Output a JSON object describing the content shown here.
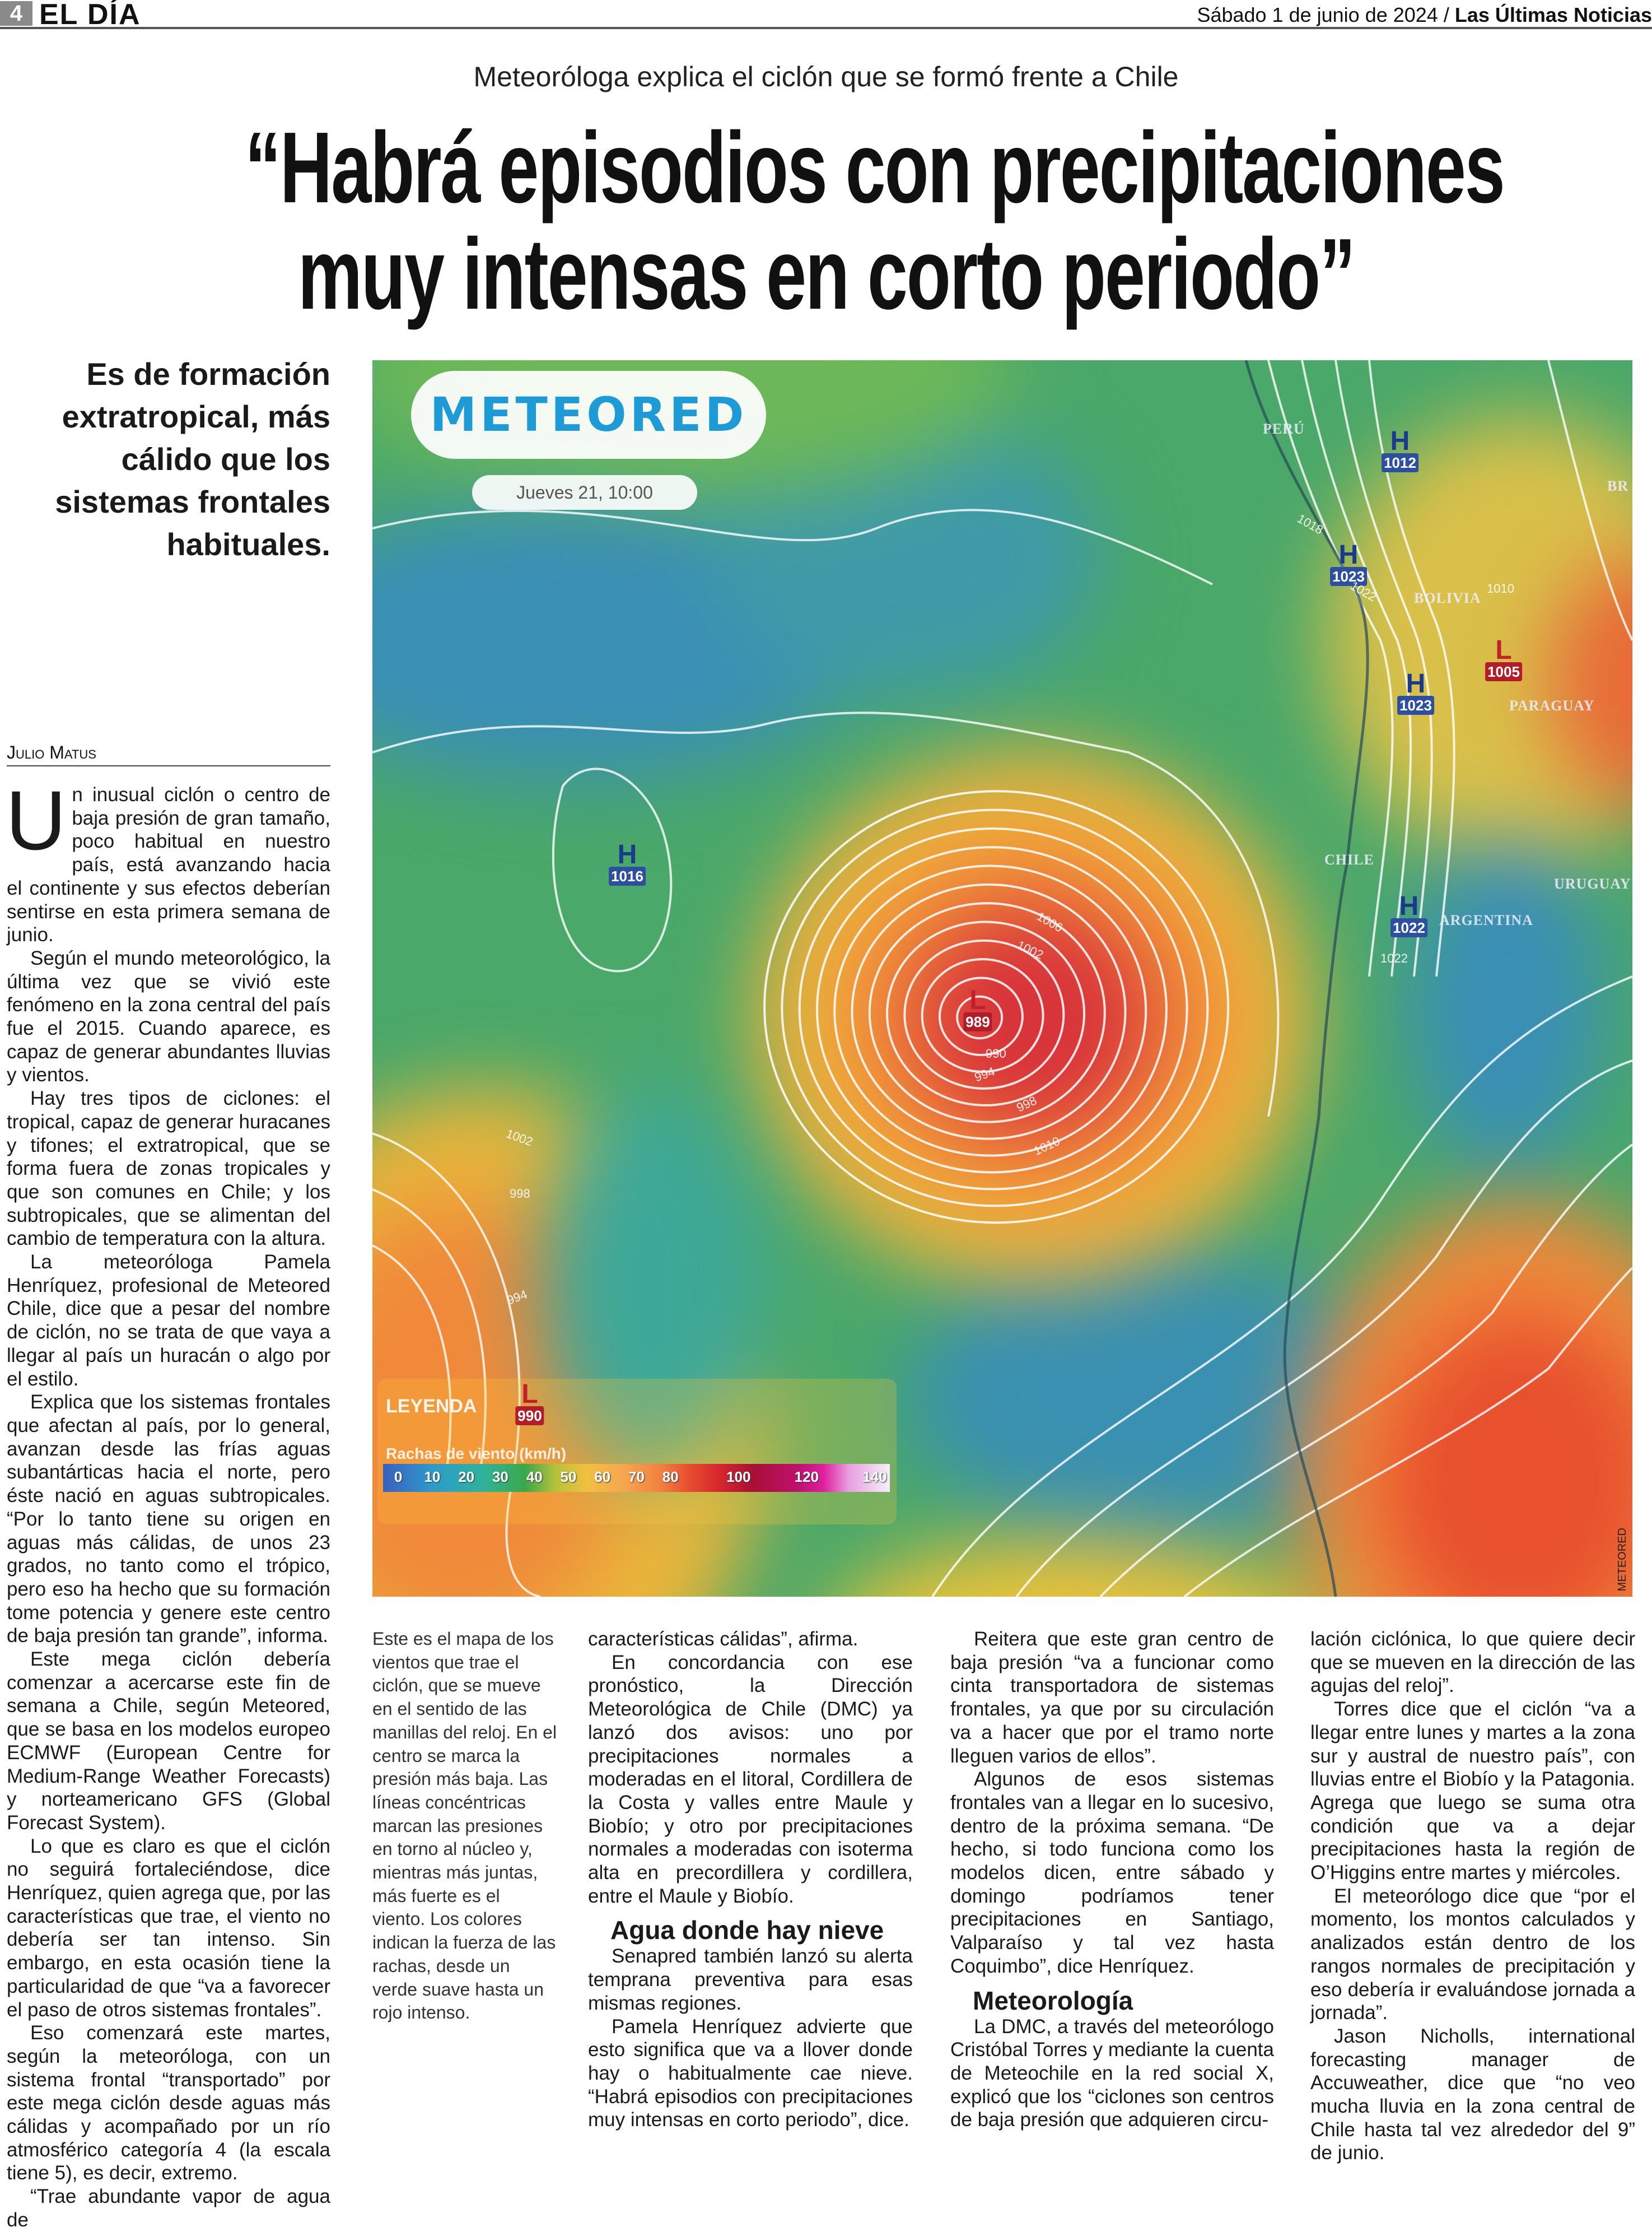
{
  "header": {
    "page_number": "4",
    "section": "EL DÍA",
    "date": "Sábado 1 de junio de 2024",
    "separator": "/",
    "publication": "Las Últimas Noticias"
  },
  "article": {
    "kicker": "Meteoróloga explica el ciclón que se formó frente a Chile",
    "headline_lines": [
      "“Habrá episodios con precipitaciones",
      "muy intensas en corto periodo”"
    ],
    "deck_lines": [
      "Es de formación",
      "extratropical, más",
      "cálido que los",
      "sistemas frontales",
      "habituales."
    ],
    "byline": "Julio Matus",
    "drop_cap": "U",
    "col1": [
      "n inusual ciclón o centro de baja presión de gran tamaño, poco habitual en nuestro país, está avanzando hacia el continente y sus efectos deberían sentirse en esta primera semana de junio.",
      "Según el mundo meteorológico, la última vez que se vivió este fenómeno en la zona central del país fue el 2015. Cuando aparece, es capaz de generar abundantes lluvias y vientos.",
      "Hay tres tipos de ciclones: el tropical, capaz de generar huracanes y tifones; el extratropical, que se forma fuera de zonas tropicales y que son comunes en Chile; y los subtropicales, que se alimentan del cambio de temperatura con la altura.",
      "La meteoróloga Pamela Henríquez, profesional de Meteored Chile, dice que a pesar del nombre de ciclón, no se trata de que vaya a llegar al país un huracán o algo por el estilo.",
      "Explica que los sistemas frontales que afectan al país, por lo general, avanzan desde las frías aguas subantárticas hacia el norte, pero éste nació en aguas subtropicales. “Por lo tanto tiene su origen en aguas más cálidas, de unos 23 grados, no tanto como el trópico, pero eso ha hecho que su formación tome potencia y genere este centro de baja presión tan grande”, informa.",
      "Este mega ciclón debería comenzar a acercarse este fin de semana a Chile, según Meteored, que se basa en los modelos europeo ECMWF (European Centre for Medium-Range Weather Forecasts) y norteamericano GFS (Global Forecast System).",
      "Lo que es claro es que el ciclón no seguirá fortaleciéndose, dice Henríquez, quien agrega que, por las características que trae, el viento no debería ser tan intenso. Sin embargo, en esta ocasión tiene la particularidad de que “va a favorecer el paso de otros sistemas frontales”.",
      "Eso comenzará este martes, según la meteoróloga, con un sistema frontal “transportado” por este mega ciclón desde aguas más cálidas y acompañado por un río atmosférico categoría 4 (la escala tiene 5), es decir, extremo.",
      "“Trae abundante vapor de agua de"
    ],
    "caption": "Este es el mapa de los vientos que trae el ciclón, que se mueve en el sentido de las manillas del reloj. En el centro se marca la presión más baja. Las líneas concéntricas marcan las presiones en torno al núcleo y, mientras más juntas, más fuerte es el viento. Los colores indican la fuerza de las rachas, desde un verde suave hasta un rojo intenso.",
    "col3": [
      "características cálidas”, afirma.",
      "En concordancia con ese pronóstico, la Dirección Meteorológica de Chile (DMC) ya lanzó dos avisos: uno por precipitaciones normales a moderadas en el litoral, Cordillera de la Costa y valles entre Maule y Biobío; y otro por precipitaciones normales a moderadas con isoterma alta en precordillera y cordillera, entre el Maule y Biobío."
    ],
    "subhead1": "Agua donde hay nieve",
    "col3b": [
      "Senapred también lanzó su alerta temprana preventiva para esas mismas regiones.",
      "Pamela Henríquez advierte que esto significa que va a llover donde hay o habitualmente cae nieve. “Habrá episodios con precipitaciones muy intensas en corto periodo”, dice."
    ],
    "col4": [
      "Reitera que este gran centro de baja presión “va a funcionar como cinta transportadora de sistemas frontales, ya que por su circulación va a hacer que por el tramo norte lleguen varios de ellos”.",
      "Algunos de esos sistemas frontales van a llegar en lo sucesivo, dentro de la próxima semana. “De hecho, si todo funciona como los modelos dicen, entre sábado y domingo podríamos tener precipitaciones en Santiago, Valparaíso y tal vez hasta Coquimbo”, dice Henríquez."
    ],
    "subhead2": "Meteorología",
    "col4b": [
      "La DMC, a través del meteorólogo Cristóbal Torres y mediante la cuenta de Meteochile en la red social X, explicó que los “ciclones son centros de baja presión que adquieren circu-"
    ],
    "col5": [
      "lación ciclónica, lo que quiere decir que se mueven en la dirección de las agujas del reloj”.",
      "Torres dice que el ciclón “va a llegar entre lunes y martes a la zona sur y austral de nuestro país”, con lluvias entre el Biobío y la Patagonia. Agrega que luego se suma otra condición que va a dejar precipitaciones hasta la región de O’Higgins entre martes y miércoles.",
      "El meteorólogo dice que “por el momento, los montos calculados y analizados están dentro de los rangos normales de precipitación y eso debería ir evaluándose jornada a jornada”.",
      "Jason Nicholls, international forecasting manager de Accuweather, dice que “no veo mucha lluvia en la zona central de Chile hasta tal vez alrededor del 9” de junio."
    ]
  },
  "map": {
    "logo": "METEORED",
    "timestamp": "Jueves 21, 10:00",
    "high_label": "H",
    "low_label": "L",
    "highs": [
      "1016",
      "1012",
      "1023",
      "1023",
      "1022"
    ],
    "lows": [
      "989",
      "1005"
    ],
    "countries": [
      "PERÚ",
      "BOLIVIA",
      "PARAGUAY",
      "CHILE",
      "ARGENTINA",
      "URUGUAY",
      "BR"
    ],
    "isobar_labels": [
      "1006",
      "1002",
      "990",
      "994",
      "998",
      "1010",
      "1002",
      "998",
      "994",
      "1018",
      "1022",
      "1010",
      "1022"
    ],
    "legend": {
      "title": "LEYENDA",
      "sample_low": "L",
      "sample_value": "990",
      "scale_title": "Rachas de viento (km/h)",
      "ticks": [
        0,
        10,
        20,
        30,
        40,
        50,
        60,
        70,
        80,
        100,
        120,
        140
      ]
    },
    "credit": "METEORED",
    "colors": {
      "logo": "#1e9bd7",
      "high": "#2d4fa0",
      "low": "#b21d2a"
    }
  }
}
